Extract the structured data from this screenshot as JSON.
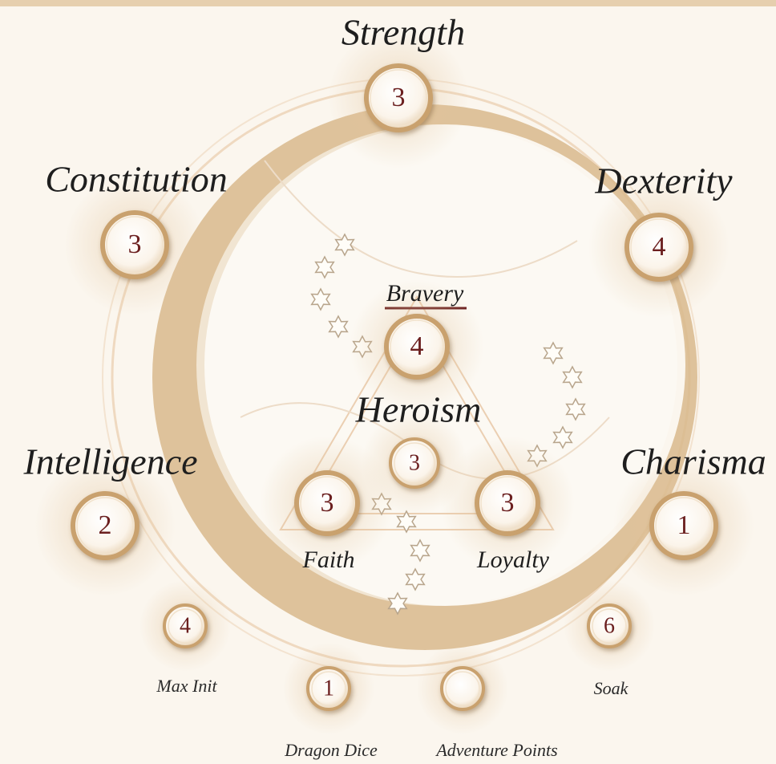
{
  "stats": [
    {
      "label": "Strength",
      "value": 3
    },
    {
      "label": "Constitution",
      "value": 3
    },
    {
      "label": "Dexterity",
      "value": 4
    },
    {
      "label": "Bravery",
      "value": 4
    },
    {
      "label": "Heroism",
      "value": 3
    },
    {
      "label": "Intelligence",
      "value": 2
    },
    {
      "label": "Charisma",
      "value": 1
    },
    {
      "label": "Faith",
      "value": 3
    },
    {
      "label": "Loyalty",
      "value": 3
    },
    {
      "label": "Max Init",
      "value": 4
    },
    {
      "label": "Soak",
      "value": 6
    },
    {
      "label": "Dragon Dice",
      "value": 1
    },
    {
      "label": "Adventure Points"
    }
  ]
}
